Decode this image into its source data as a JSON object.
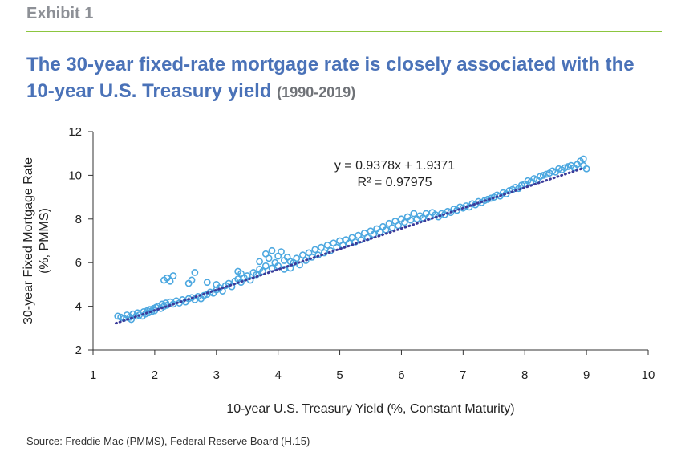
{
  "header": {
    "exhibit": "Exhibit 1",
    "title": "The 30-year fixed-rate mortgage rate is closely associated with the 10-year U.S. Treasury yield",
    "title_period": "(1990-2019)"
  },
  "source": "Source: Freddie Mac (PMMS), Federal Reserve Board (H.15)",
  "chart_data": {
    "type": "scatter",
    "xlabel": "10-year U.S. Treasury Yield (%, Constant Maturity)",
    "ylabel_line1": "30-year Fixed Mortgage Rate",
    "ylabel_line2": "(%, PMMS)",
    "xlim": [
      1,
      10
    ],
    "ylim": [
      2,
      12
    ],
    "x_ticks": [
      "1",
      "2",
      "3",
      "4",
      "5",
      "6",
      "7",
      "8",
      "9",
      "10"
    ],
    "y_ticks": [
      "2",
      "4",
      "6",
      "8",
      "10",
      "12"
    ],
    "grid": false,
    "trendline": {
      "slope": 0.9378,
      "intercept": 1.9371,
      "x_range": [
        1.37,
        8.95
      ],
      "equation": "y = 0.9378x + 1.9371",
      "r_squared": "R² = 0.97975"
    },
    "series": [
      {
        "marker_color": "#4da8e0",
        "trend_color": "#3b3b9a",
        "points": [
          [
            1.4,
            3.55
          ],
          [
            1.45,
            3.5
          ],
          [
            1.5,
            3.45
          ],
          [
            1.55,
            3.6
          ],
          [
            1.6,
            3.5
          ],
          [
            1.62,
            3.4
          ],
          [
            1.65,
            3.65
          ],
          [
            1.7,
            3.55
          ],
          [
            1.72,
            3.7
          ],
          [
            1.75,
            3.6
          ],
          [
            1.8,
            3.55
          ],
          [
            1.82,
            3.75
          ],
          [
            1.85,
            3.65
          ],
          [
            1.88,
            3.8
          ],
          [
            1.9,
            3.7
          ],
          [
            1.92,
            3.85
          ],
          [
            1.95,
            3.75
          ],
          [
            1.98,
            3.9
          ],
          [
            2.0,
            3.8
          ],
          [
            2.02,
            3.95
          ],
          [
            2.05,
            4.0
          ],
          [
            2.1,
            3.9
          ],
          [
            2.12,
            4.1
          ],
          [
            2.15,
            4.0
          ],
          [
            2.18,
            4.15
          ],
          [
            2.2,
            4.05
          ],
          [
            2.15,
            5.2
          ],
          [
            2.2,
            5.3
          ],
          [
            2.25,
            5.15
          ],
          [
            2.3,
            5.4
          ],
          [
            2.25,
            4.2
          ],
          [
            2.3,
            4.1
          ],
          [
            2.35,
            4.25
          ],
          [
            2.4,
            4.15
          ],
          [
            2.45,
            4.3
          ],
          [
            2.5,
            4.2
          ],
          [
            2.55,
            4.35
          ],
          [
            2.55,
            5.05
          ],
          [
            2.6,
            5.2
          ],
          [
            2.65,
            5.55
          ],
          [
            2.6,
            4.4
          ],
          [
            2.65,
            4.3
          ],
          [
            2.7,
            4.45
          ],
          [
            2.75,
            4.35
          ],
          [
            2.8,
            4.5
          ],
          [
            2.85,
            5.1
          ],
          [
            2.85,
            4.55
          ],
          [
            2.9,
            4.65
          ],
          [
            2.95,
            4.6
          ],
          [
            3.0,
            4.75
          ],
          [
            3.0,
            5.0
          ],
          [
            3.05,
            4.85
          ],
          [
            3.1,
            4.7
          ],
          [
            3.15,
            4.95
          ],
          [
            3.2,
            5.05
          ],
          [
            3.25,
            4.9
          ],
          [
            3.3,
            5.15
          ],
          [
            3.35,
            5.25
          ],
          [
            3.35,
            5.6
          ],
          [
            3.4,
            5.5
          ],
          [
            3.4,
            5.1
          ],
          [
            3.45,
            5.3
          ],
          [
            3.5,
            5.4
          ],
          [
            3.55,
            5.2
          ],
          [
            3.6,
            5.55
          ],
          [
            3.65,
            5.45
          ],
          [
            3.7,
            5.7
          ],
          [
            3.7,
            6.05
          ],
          [
            3.75,
            5.6
          ],
          [
            3.8,
            5.85
          ],
          [
            3.8,
            6.4
          ],
          [
            3.85,
            6.2
          ],
          [
            3.9,
            5.75
          ],
          [
            3.9,
            6.55
          ],
          [
            3.95,
            6.0
          ],
          [
            4.0,
            6.3
          ],
          [
            4.0,
            5.85
          ],
          [
            4.05,
            6.5
          ],
          [
            4.1,
            6.1
          ],
          [
            4.1,
            5.7
          ],
          [
            4.15,
            6.25
          ],
          [
            4.2,
            6.05
          ],
          [
            4.2,
            5.75
          ],
          [
            4.25,
            6.0
          ],
          [
            4.3,
            6.2
          ],
          [
            4.35,
            5.9
          ],
          [
            4.4,
            6.35
          ],
          [
            4.45,
            6.1
          ],
          [
            4.5,
            6.45
          ],
          [
            4.55,
            6.25
          ],
          [
            4.6,
            6.6
          ],
          [
            4.65,
            6.35
          ],
          [
            4.7,
            6.7
          ],
          [
            4.75,
            6.45
          ],
          [
            4.8,
            6.8
          ],
          [
            4.85,
            6.55
          ],
          [
            4.9,
            6.9
          ],
          [
            4.95,
            6.7
          ],
          [
            5.0,
            7.0
          ],
          [
            5.05,
            6.8
          ],
          [
            5.1,
            7.05
          ],
          [
            5.15,
            6.9
          ],
          [
            5.2,
            7.15
          ],
          [
            5.25,
            6.95
          ],
          [
            5.3,
            7.25
          ],
          [
            5.35,
            7.05
          ],
          [
            5.4,
            7.35
          ],
          [
            5.45,
            7.15
          ],
          [
            5.5,
            7.45
          ],
          [
            5.55,
            7.3
          ],
          [
            5.6,
            7.55
          ],
          [
            5.65,
            7.4
          ],
          [
            5.7,
            7.65
          ],
          [
            5.75,
            7.5
          ],
          [
            5.8,
            7.8
          ],
          [
            5.85,
            7.6
          ],
          [
            5.9,
            7.9
          ],
          [
            5.95,
            7.7
          ],
          [
            6.0,
            8.0
          ],
          [
            6.05,
            7.85
          ],
          [
            6.1,
            8.1
          ],
          [
            6.15,
            7.95
          ],
          [
            6.2,
            8.25
          ],
          [
            6.25,
            8.0
          ],
          [
            6.3,
            8.15
          ],
          [
            6.35,
            8.05
          ],
          [
            6.4,
            8.25
          ],
          [
            6.45,
            8.1
          ],
          [
            6.5,
            8.3
          ],
          [
            6.55,
            8.2
          ],
          [
            6.6,
            8.1
          ],
          [
            6.65,
            8.25
          ],
          [
            6.7,
            8.2
          ],
          [
            6.75,
            8.35
          ],
          [
            6.8,
            8.3
          ],
          [
            6.85,
            8.45
          ],
          [
            6.9,
            8.4
          ],
          [
            6.95,
            8.55
          ],
          [
            7.0,
            8.5
          ],
          [
            7.05,
            8.6
          ],
          [
            7.1,
            8.55
          ],
          [
            7.15,
            8.7
          ],
          [
            7.2,
            8.65
          ],
          [
            7.25,
            8.8
          ],
          [
            7.3,
            8.75
          ],
          [
            7.35,
            8.85
          ],
          [
            7.4,
            8.9
          ],
          [
            7.45,
            8.95
          ],
          [
            7.5,
            9.0
          ],
          [
            7.55,
            9.1
          ],
          [
            7.6,
            9.05
          ],
          [
            7.65,
            9.2
          ],
          [
            7.7,
            9.15
          ],
          [
            7.75,
            9.3
          ],
          [
            7.8,
            9.35
          ],
          [
            7.85,
            9.45
          ],
          [
            7.9,
            9.4
          ],
          [
            7.95,
            9.55
          ],
          [
            8.0,
            9.6
          ],
          [
            8.05,
            9.75
          ],
          [
            8.1,
            9.7
          ],
          [
            8.15,
            9.85
          ],
          [
            8.2,
            9.8
          ],
          [
            8.25,
            9.95
          ],
          [
            8.3,
            10.0
          ],
          [
            8.35,
            10.05
          ],
          [
            8.4,
            10.1
          ],
          [
            8.45,
            10.2
          ],
          [
            8.5,
            10.15
          ],
          [
            8.55,
            10.3
          ],
          [
            8.6,
            10.25
          ],
          [
            8.65,
            10.35
          ],
          [
            8.7,
            10.4
          ],
          [
            8.75,
            10.45
          ],
          [
            8.8,
            10.35
          ],
          [
            8.85,
            10.5
          ],
          [
            8.9,
            10.65
          ],
          [
            8.95,
            10.45
          ],
          [
            8.95,
            10.75
          ],
          [
            9.0,
            10.3
          ]
        ]
      }
    ]
  }
}
